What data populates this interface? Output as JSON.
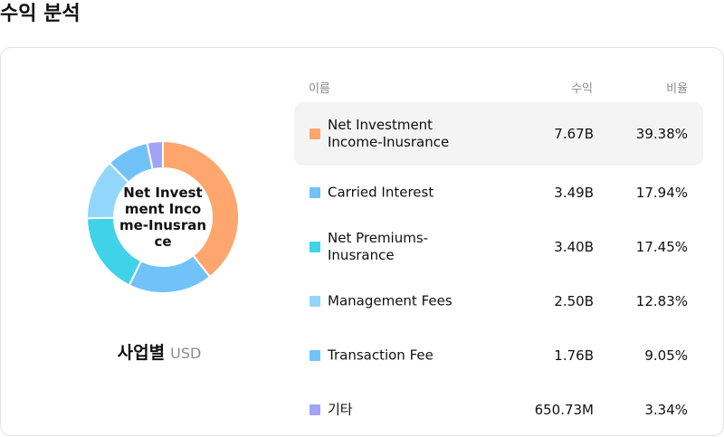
{
  "page_title": "수익 분석",
  "donut": {
    "center_label": "Net Investment Income-Inusrance",
    "caption_title": "사업별",
    "caption_unit": "USD"
  },
  "table": {
    "headers": {
      "name": "이름",
      "revenue": "수익",
      "ratio": "비율"
    },
    "rows": [
      {
        "name": "Net Investment Income-Inusrance",
        "revenue": "7.67B",
        "ratio": "39.38%",
        "color": "#FFA66E"
      },
      {
        "name": "Carried Interest",
        "revenue": "3.49B",
        "ratio": "17.94%",
        "color": "#71C2F8"
      },
      {
        "name": "Net Premiums-Inusrance",
        "revenue": "3.40B",
        "ratio": "17.45%",
        "color": "#40D2E8"
      },
      {
        "name": "Management Fees",
        "revenue": "2.50B",
        "ratio": "12.83%",
        "color": "#92D6FC"
      },
      {
        "name": "Transaction Fee",
        "revenue": "1.76B",
        "ratio": "9.05%",
        "color": "#71C2F8"
      },
      {
        "name": "기타",
        "revenue": "650.73M",
        "ratio": "3.34%",
        "color": "#A3A3F5"
      }
    ]
  },
  "chart_data": {
    "type": "pie",
    "categories": [
      "Net Investment Income-Inusrance",
      "Carried Interest",
      "Net Premiums-Inusrance",
      "Management Fees",
      "Transaction Fee",
      "기타"
    ],
    "values": [
      39.38,
      17.94,
      17.45,
      12.83,
      9.05,
      3.34
    ],
    "colors": [
      "#FFA66E",
      "#71C2F8",
      "#40D2E8",
      "#92D6FC",
      "#71C2F8",
      "#A3A3F5"
    ],
    "title": "사업별",
    "unit": "USD"
  }
}
